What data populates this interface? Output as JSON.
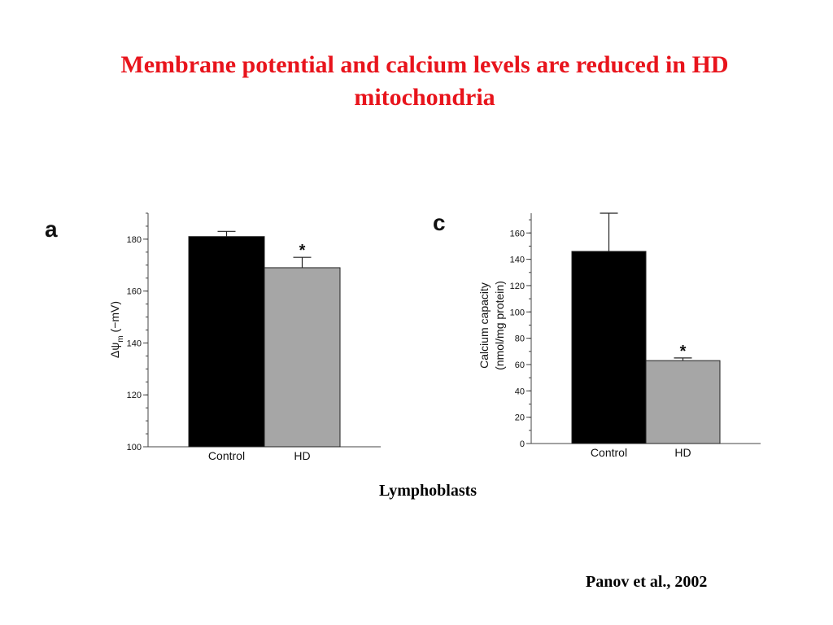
{
  "slide": {
    "title": "Membrane potential and calcium levels are reduced in HD mitochondria",
    "caption": "Lymphoblasts",
    "citation": "Panov et al., 2002"
  },
  "chart_data": [
    {
      "panel": "a",
      "type": "bar",
      "categories": [
        "Control",
        "HD"
      ],
      "values": [
        181,
        169
      ],
      "errors": [
        2,
        4
      ],
      "bar_colors": [
        "#000000",
        "#a6a6a6"
      ],
      "significance": [
        "",
        "*"
      ],
      "ylabel_main": "Δψ",
      "ylabel_sub": "m",
      "ylabel_tail": " (−mV)",
      "ylim": [
        100,
        190
      ],
      "yticks": [
        100,
        120,
        140,
        160,
        180
      ],
      "grid": false,
      "legend": "none"
    },
    {
      "panel": "c",
      "type": "bar",
      "categories": [
        "Control",
        "HD"
      ],
      "values": [
        146,
        63
      ],
      "errors": [
        29,
        2
      ],
      "bar_colors": [
        "#000000",
        "#a6a6a6"
      ],
      "significance": [
        "",
        "*"
      ],
      "ylabel_line1": "Calcium capacity",
      "ylabel_line2": "(nmol/mg protein)",
      "ylim": [
        0,
        175
      ],
      "yticks": [
        0,
        20,
        40,
        60,
        80,
        100,
        120,
        140,
        160
      ],
      "grid": false,
      "legend": "none"
    }
  ]
}
